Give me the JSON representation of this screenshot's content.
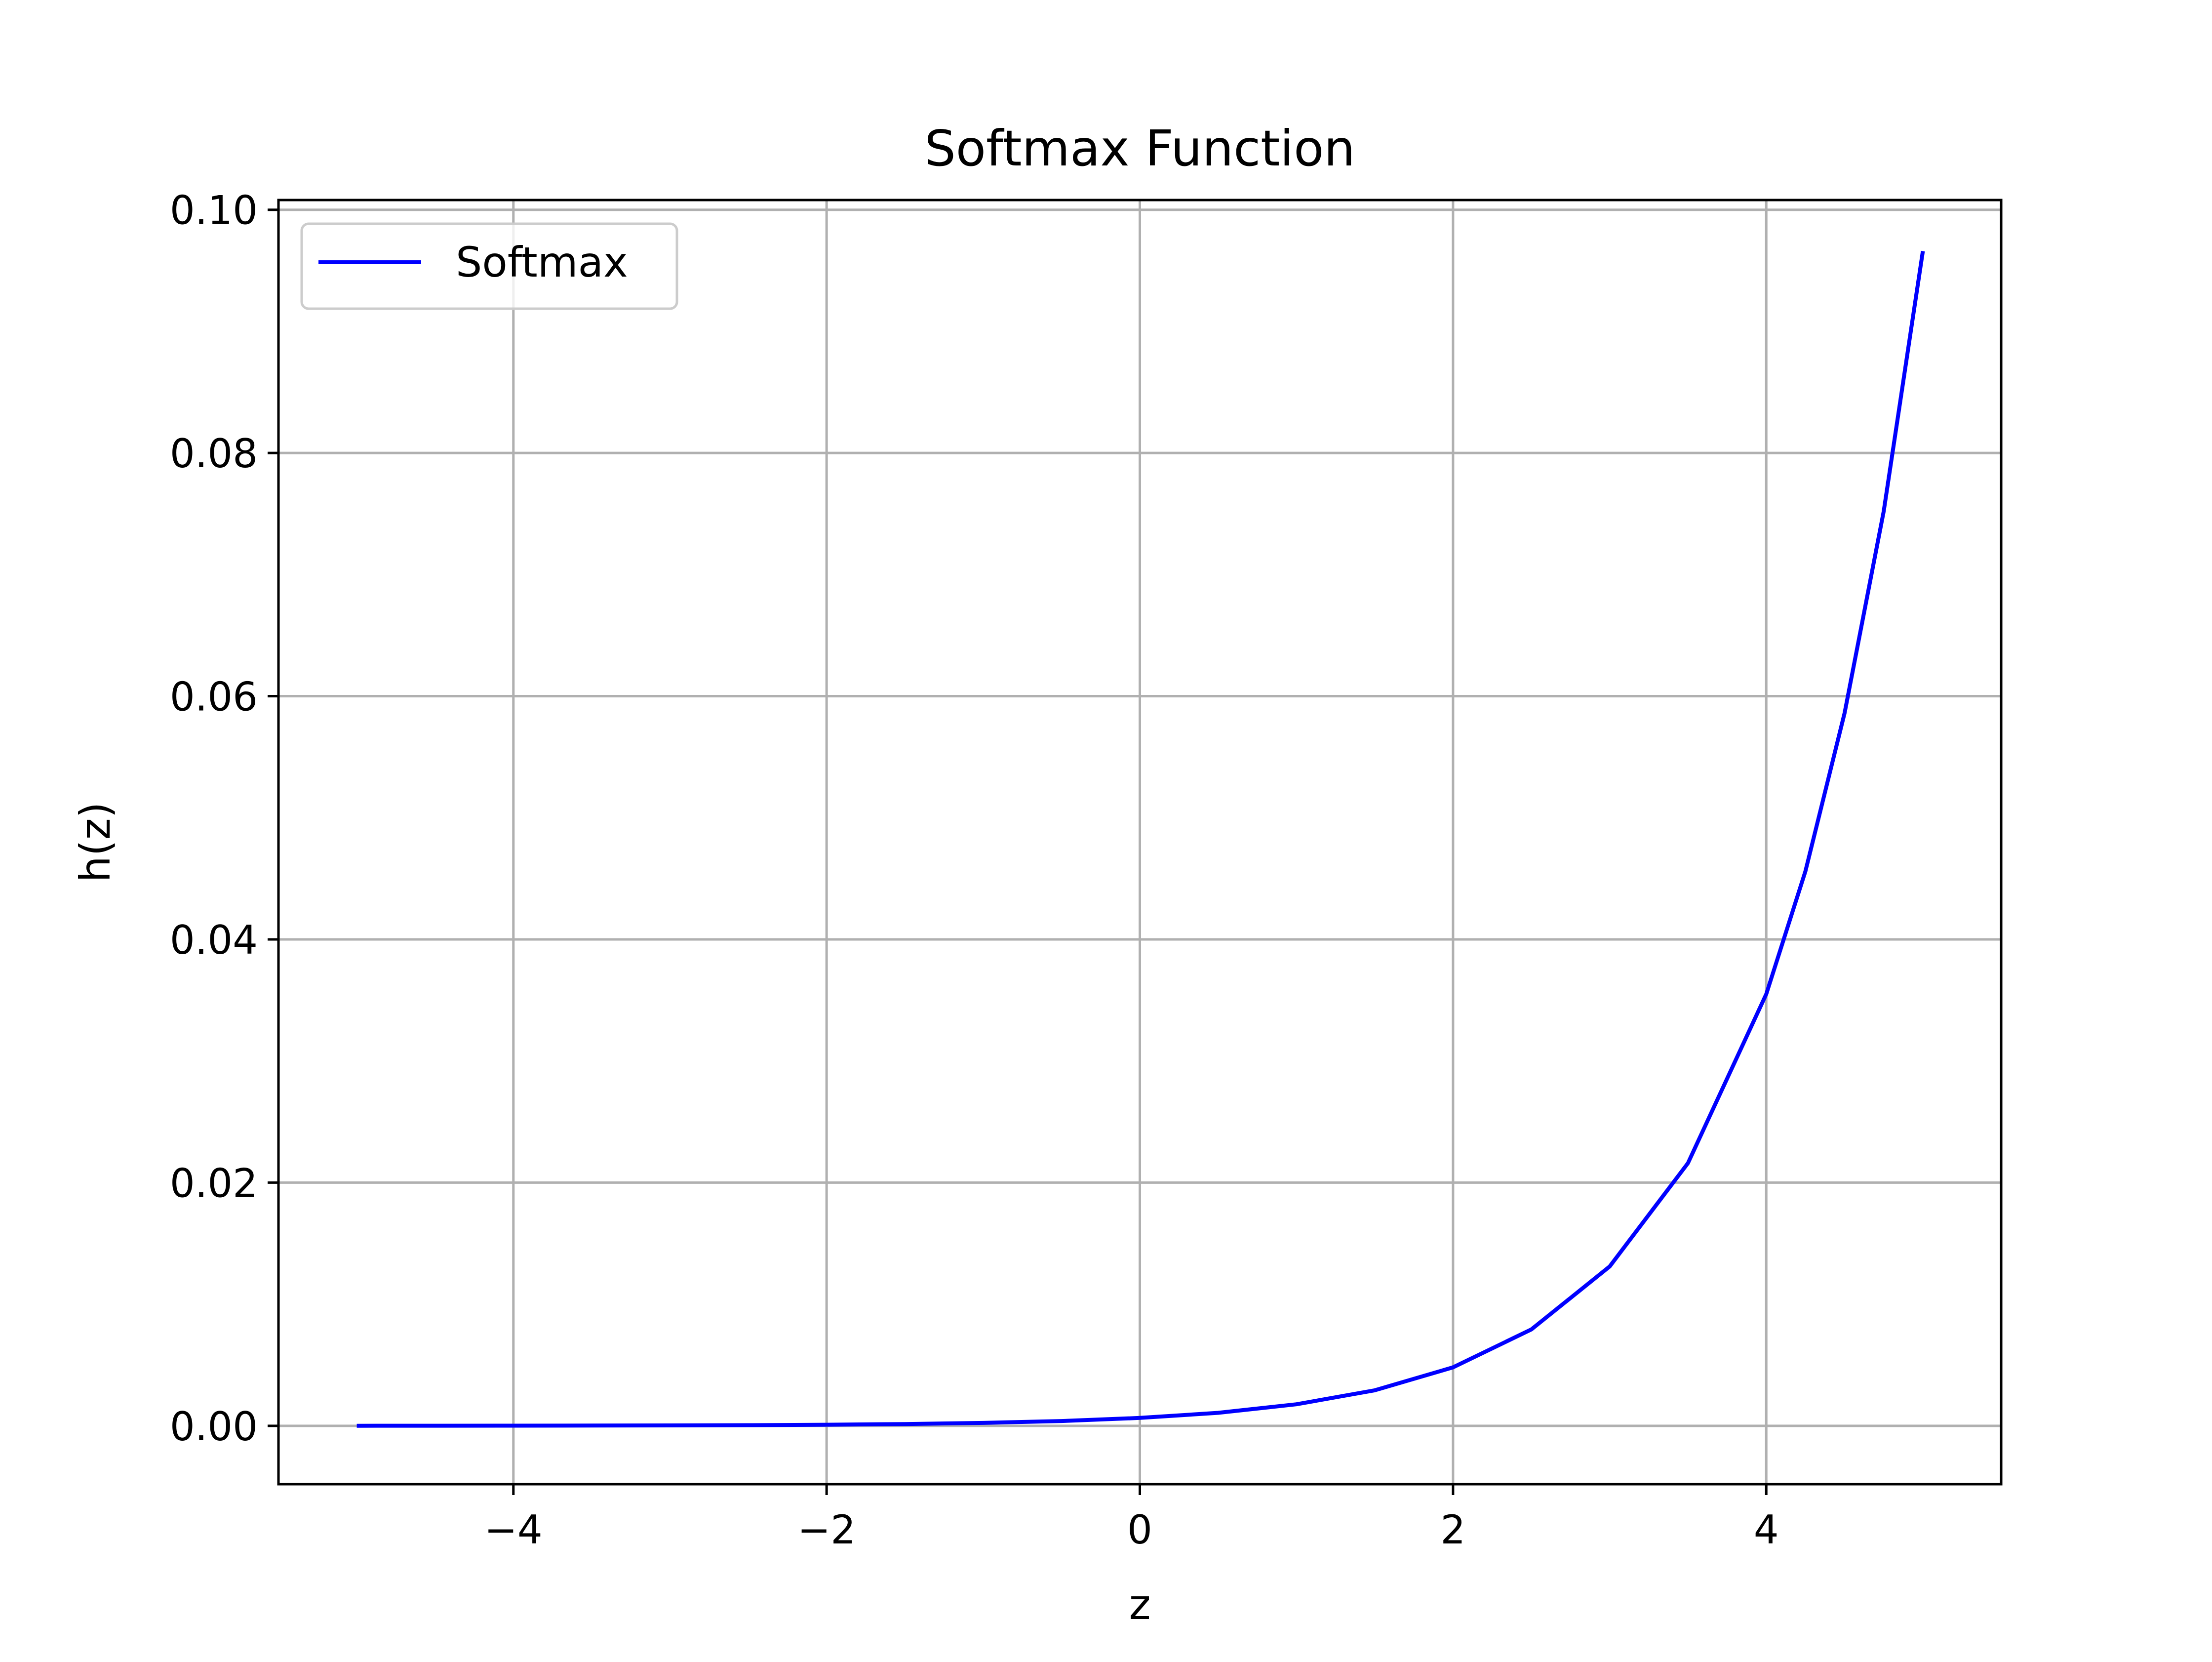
{
  "chart_data": {
    "type": "line",
    "title": "Softmax Function",
    "xlabel": "z",
    "ylabel": "h(z)",
    "xlim": [
      -5.5,
      5.5
    ],
    "ylim": [
      -0.0048,
      0.1008
    ],
    "x_ticks": [
      -4,
      -2,
      0,
      2,
      4
    ],
    "x_tick_labels": [
      "−4",
      "−2",
      "0",
      "2",
      "4"
    ],
    "y_ticks": [
      0.0,
      0.02,
      0.04,
      0.06,
      0.08,
      0.1
    ],
    "y_tick_labels": [
      "0.00",
      "0.02",
      "0.04",
      "0.06",
      "0.08",
      "0.10"
    ],
    "grid": true,
    "legend_position": "top-left",
    "series": [
      {
        "name": "Softmax",
        "color": "#0000ff",
        "x": [
          -5.0,
          -4.5,
          -4.0,
          -3.5,
          -3.0,
          -2.5,
          -2.0,
          -1.5,
          -1.0,
          -0.5,
          0.0,
          0.5,
          1.0,
          1.5,
          2.0,
          2.5,
          3.0,
          3.5,
          4.0,
          4.25,
          4.5,
          4.75,
          5.0
        ],
        "y": [
          4.4e-06,
          7.2e-06,
          1.19e-05,
          1.97e-05,
          3.24e-05,
          5.34e-05,
          8.81e-05,
          0.000145,
          0.00024,
          0.000395,
          0.000651,
          0.00107,
          0.00177,
          0.00292,
          0.00481,
          0.00793,
          0.0131,
          0.0216,
          0.0355,
          0.0456,
          0.0586,
          0.0752,
          0.0966
        ]
      }
    ]
  }
}
